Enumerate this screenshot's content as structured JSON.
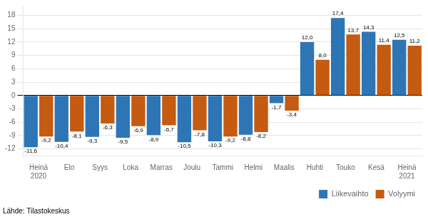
{
  "chart_data": {
    "type": "bar",
    "categories": [
      "Heinä\n2020",
      "Elo",
      "Syys",
      "Loka",
      "Marras",
      "Joulu",
      "Tammi",
      "Helmi",
      "Maalis",
      "Huhti",
      "Touko",
      "Kesä",
      "Heinä\n2021"
    ],
    "series": [
      {
        "name": "Liikevaihto",
        "color": "#2e75b6",
        "values": [
          -11.6,
          -10.4,
          -9.3,
          -9.5,
          -8.9,
          -10.5,
          -10.3,
          -8.8,
          -1.7,
          12.0,
          17.4,
          14.3,
          12.5
        ],
        "value_labels": [
          "-11,6",
          "-10,4",
          "-9,3",
          "-9,5",
          "-8,9",
          "-10,5",
          "-10,3",
          "-8,8",
          "-1,7",
          "12,0",
          "17,4",
          "14,3",
          "12,5"
        ]
      },
      {
        "name": "Volyymi",
        "color": "#c55a11",
        "values": [
          -9.2,
          -8.1,
          -6.3,
          -6.9,
          -6.7,
          -7.8,
          -9.2,
          -8.2,
          -3.4,
          8.0,
          13.7,
          11.4,
          11.2
        ],
        "value_labels": [
          "-9,2",
          "-8,1",
          "-6,3",
          "-6,9",
          "-6,7",
          "-7,8",
          "-9,2",
          "-8,2",
          "-3,4",
          "8,0",
          "13,7",
          "11,4",
          "11,2"
        ]
      }
    ],
    "ylim": [
      -13.5,
      20
    ],
    "yticks": [
      -12,
      -9,
      -6,
      -3,
      0,
      3,
      6,
      9,
      12,
      15,
      18
    ],
    "grid": true,
    "legend": "lower right",
    "data_labels": true,
    "annotations": [
      "Lähde: Tilastokeskus"
    ]
  }
}
